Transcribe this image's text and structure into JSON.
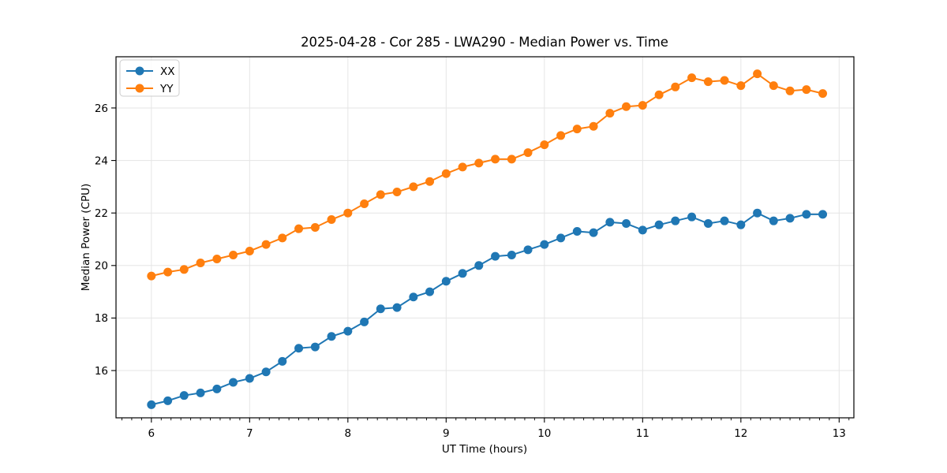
{
  "figure": {
    "background": "#ffffff"
  },
  "chart_data": {
    "type": "line",
    "title": "2025-04-28 - Cor 285 - LWA290 - Median Power vs. Time",
    "xlabel": "UT Time (hours)",
    "ylabel": "Median Power (CPU)",
    "grid": "major",
    "grid_color": "#e5e5e5",
    "spine_color": "#000000",
    "text_color": "#000000",
    "legend": {
      "position": "upper-left",
      "entries": [
        "XX",
        "YY"
      ]
    },
    "axes": {
      "xlim": [
        5.64,
        13.15
      ],
      "ylim": [
        14.2,
        27.95
      ],
      "x_major_ticks": [
        6,
        7,
        8,
        9,
        10,
        11,
        12,
        13
      ],
      "x_minor_tick_step": 0.1,
      "y_major_ticks": [
        16,
        18,
        20,
        22,
        24,
        26
      ]
    },
    "x": [
      6.0,
      6.167,
      6.333,
      6.5,
      6.667,
      6.833,
      7.0,
      7.167,
      7.333,
      7.5,
      7.667,
      7.833,
      8.0,
      8.167,
      8.333,
      8.5,
      8.667,
      8.833,
      9.0,
      9.167,
      9.333,
      9.5,
      9.667,
      9.833,
      10.0,
      10.167,
      10.333,
      10.5,
      10.667,
      10.833,
      11.0,
      11.167,
      11.333,
      11.5,
      11.667,
      11.833,
      12.0,
      12.167,
      12.333,
      12.5,
      12.667,
      12.833
    ],
    "series": [
      {
        "name": "XX",
        "color": "#1f77b4",
        "marker": "circle",
        "values": [
          14.7,
          14.85,
          15.05,
          15.15,
          15.3,
          15.55,
          15.7,
          15.95,
          16.35,
          16.85,
          16.9,
          17.3,
          17.5,
          17.85,
          18.35,
          18.4,
          18.8,
          19.0,
          19.4,
          19.7,
          20.0,
          20.35,
          20.4,
          20.6,
          20.8,
          21.05,
          21.3,
          21.25,
          21.65,
          21.6,
          21.35,
          21.55,
          21.7,
          21.85,
          21.6,
          21.7,
          21.55,
          22.0,
          21.7,
          21.8,
          21.95,
          21.95
        ]
      },
      {
        "name": "YY",
        "color": "#ff7f0e",
        "marker": "circle",
        "values": [
          19.6,
          19.75,
          19.85,
          20.1,
          20.25,
          20.4,
          20.55,
          20.8,
          21.05,
          21.4,
          21.45,
          21.75,
          22.0,
          22.35,
          22.7,
          22.8,
          23.0,
          23.2,
          23.5,
          23.75,
          23.9,
          24.05,
          24.05,
          24.3,
          24.6,
          24.95,
          25.2,
          25.3,
          25.8,
          26.05,
          26.1,
          26.5,
          26.8,
          27.15,
          27.0,
          27.05,
          26.85,
          27.3,
          26.85,
          26.65,
          26.7,
          26.55
        ]
      }
    ]
  }
}
